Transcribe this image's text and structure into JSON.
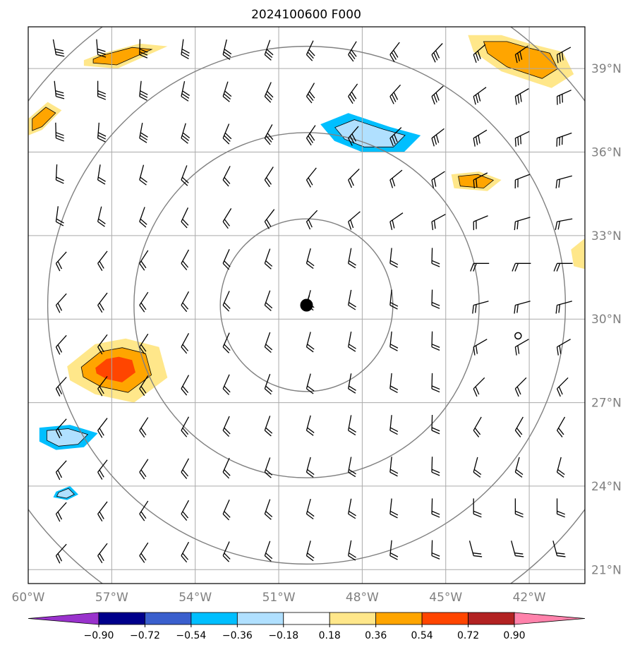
{
  "title": "2024100600 F000",
  "map": {
    "lon_range": [
      -60,
      -40
    ],
    "lat_range": [
      20.5,
      40.5
    ],
    "lon_ticks": [
      -60,
      -57,
      -54,
      -51,
      -48,
      -45,
      -42
    ],
    "lon_tick_labels": [
      "60°W",
      "57°W",
      "54°W",
      "51°W",
      "48°W",
      "45°W",
      "42°W"
    ],
    "lat_ticks": [
      21,
      24,
      27,
      30,
      33,
      36,
      39
    ],
    "lat_tick_labels": [
      "21°N",
      "24°N",
      "27°N",
      "30°N",
      "33°N",
      "36°N",
      "39°N"
    ],
    "gridlines": true,
    "center_marker": {
      "lon": -50,
      "lat": 30.5
    },
    "range_rings_deg": [
      3.1,
      6.2,
      9.3,
      12.4
    ],
    "small_circle_marker": {
      "lon": -42.4,
      "lat": 29.4
    }
  },
  "colorbar": {
    "levels": [
      -0.9,
      -0.72,
      -0.54,
      -0.36,
      -0.18,
      0.18,
      0.36,
      0.54,
      0.72,
      0.9
    ],
    "labels": [
      "−0.90",
      "−0.72",
      "−0.54",
      "−0.36",
      "−0.18",
      "0.18",
      "0.36",
      "0.54",
      "0.72",
      "0.90"
    ],
    "colors": [
      "#9932cc",
      "#00008b",
      "#3a5fcd",
      "#00bfff",
      "#b0e0ff",
      "#ffffff",
      "#ffe78a",
      "#ffa500",
      "#ff4500",
      "#b22222",
      "#ff82ab"
    ],
    "extend": "both"
  },
  "chart_data": {
    "type": "map",
    "title": "2024100600 F000",
    "field": "filled contours with black wind barbs",
    "contour_regions": [
      {
        "value_bin": "0.18–0.54",
        "lons": [
          -58.0,
          -57.5,
          -56.0,
          -55.0,
          -56.8,
          -58.0
        ],
        "lats": [
          39.3,
          39.5,
          39.9,
          39.8,
          39.0,
          39.1
        ]
      },
      {
        "value_bin": "0.18–0.54",
        "lons": [
          -60.0,
          -59.3,
          -58.8,
          -59.5,
          -60.0
        ],
        "lats": [
          37.2,
          37.8,
          37.5,
          36.8,
          36.6
        ]
      },
      {
        "value_bin": "-0.54–-0.18",
        "lons": [
          -49.5,
          -48.5,
          -47.0,
          -45.9,
          -46.5,
          -48.0,
          -49.0
        ],
        "lats": [
          37.0,
          37.4,
          36.9,
          36.6,
          36.0,
          36.0,
          36.4
        ]
      },
      {
        "value_bin": "0.18–0.54",
        "lons": [
          -44.8,
          -43.8,
          -43.0,
          -43.5,
          -44.7
        ],
        "lats": [
          35.2,
          35.3,
          35.0,
          34.6,
          34.7
        ]
      },
      {
        "value_bin": "0.18–0.54",
        "lons": [
          -44.2,
          -43.0,
          -42.0,
          -40.8,
          -40.4,
          -41.2,
          -43.0,
          -44.0
        ],
        "lats": [
          40.2,
          40.2,
          39.9,
          39.6,
          38.8,
          38.3,
          38.9,
          39.6
        ]
      },
      {
        "value_bin": "0.18–0.72",
        "lons": [
          -58.6,
          -57.6,
          -56.5,
          -55.3,
          -55.0,
          -56.2,
          -57.6,
          -58.5
        ],
        "lats": [
          28.3,
          29.1,
          29.3,
          29.0,
          27.9,
          27.0,
          27.3,
          27.8
        ]
      },
      {
        "value_bin": "-0.54–-0.18",
        "lons": [
          -59.6,
          -58.5,
          -57.5,
          -58.0,
          -59.0,
          -59.6
        ],
        "lats": [
          26.1,
          26.2,
          25.9,
          25.4,
          25.3,
          25.6
        ]
      },
      {
        "value_bin": "-0.54–-0.18",
        "lons": [
          -59.0,
          -58.5,
          -58.2,
          -58.6,
          -59.1
        ],
        "lats": [
          23.8,
          24.0,
          23.7,
          23.5,
          23.6
        ]
      },
      {
        "value_bin": "0.18–0.36",
        "lons": [
          -40.5,
          -40.0,
          -40.0,
          -40.4
        ],
        "lats": [
          32.5,
          32.9,
          31.8,
          31.9
        ]
      }
    ],
    "wind_barbs": "regular grid every 1.5° longitude and 1.5° latitude"
  }
}
